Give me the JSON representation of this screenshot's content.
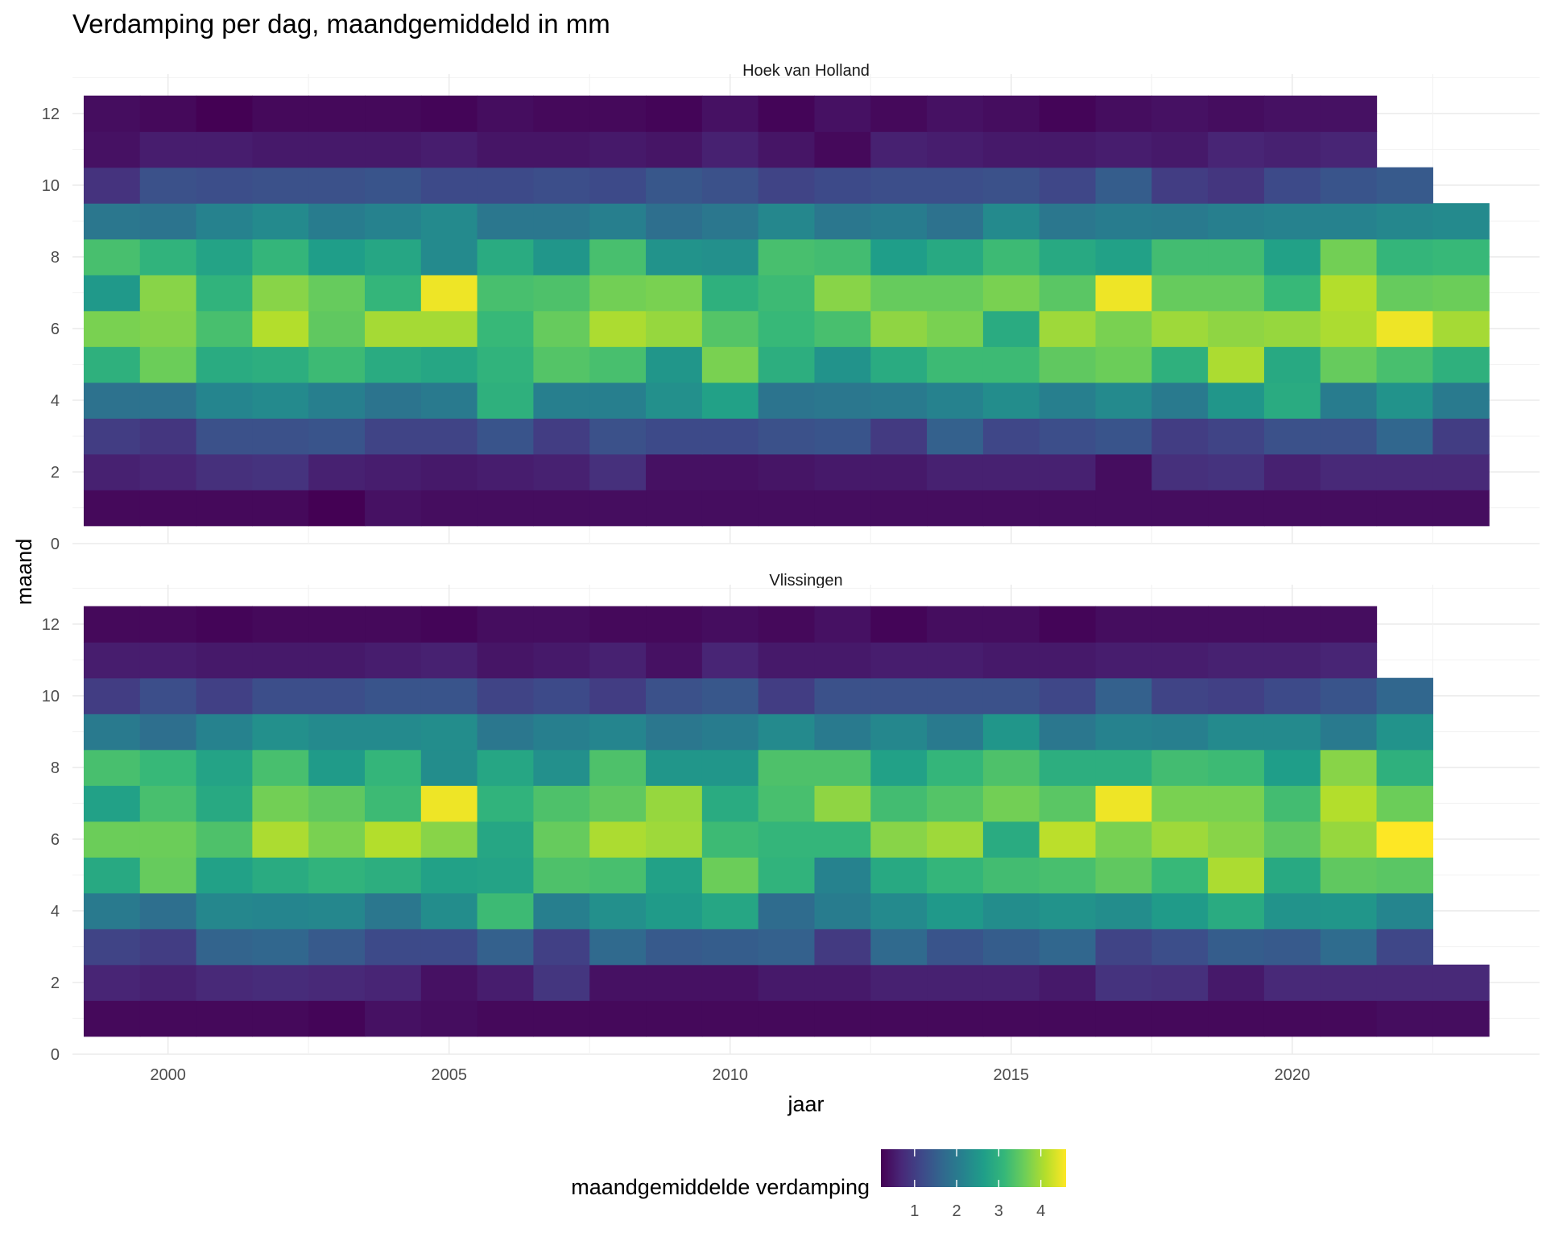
{
  "chart_data": {
    "type": "heatmap",
    "title": "Verdamping per dag, maandgemiddeld in mm",
    "xlabel": "jaar",
    "ylabel": "maand",
    "x_ticks": [
      2000,
      2005,
      2010,
      2015,
      2020
    ],
    "y_ticks": [
      0,
      2,
      4,
      6,
      8,
      10,
      12
    ],
    "xlim": [
      1998.3,
      2024.4
    ],
    "ylim": [
      0,
      13.1
    ],
    "years": [
      1999,
      2000,
      2001,
      2002,
      2003,
      2004,
      2005,
      2006,
      2007,
      2008,
      2009,
      2010,
      2011,
      2012,
      2013,
      2014,
      2015,
      2016,
      2017,
      2018,
      2019,
      2020,
      2021,
      2022,
      2023
    ],
    "months": [
      1,
      2,
      3,
      4,
      5,
      6,
      7,
      8,
      9,
      10,
      11,
      12
    ],
    "color_scale": {
      "name": "viridis",
      "legend_title": "maandgemiddelde verdamping",
      "legend_ticks": [
        1,
        2,
        3,
        4
      ],
      "min": 0.2,
      "max": 4.6,
      "legend_position": "bottom",
      "stops": [
        "#440154",
        "#482878",
        "#3e4989",
        "#31688e",
        "#26828e",
        "#1f9e89",
        "#35b779",
        "#6ece58",
        "#b5de2b",
        "#fde725"
      ]
    },
    "panels": [
      {
        "name": "Hoek van Holland",
        "values": [
          [
            0.3,
            0.3,
            0.3,
            0.3,
            0.2,
            0.4,
            0.35,
            0.35,
            0.35,
            0.35,
            0.35,
            0.35,
            0.35,
            0.35,
            0.35,
            0.35,
            0.35,
            0.35,
            0.35,
            0.35,
            0.35,
            0.35,
            0.35,
            0.35,
            0.35
          ],
          [
            0.6,
            0.65,
            0.8,
            0.85,
            0.6,
            0.55,
            0.5,
            0.55,
            0.6,
            0.8,
            0.4,
            0.4,
            0.45,
            0.5,
            0.5,
            0.6,
            0.6,
            0.6,
            0.35,
            0.8,
            0.85,
            0.6,
            0.7,
            0.7,
            0.7
          ],
          [
            1.0,
            0.9,
            1.3,
            1.3,
            1.35,
            1.1,
            1.1,
            1.35,
            1.0,
            1.3,
            1.2,
            1.2,
            1.3,
            1.35,
            0.95,
            1.55,
            1.15,
            1.25,
            1.35,
            1.0,
            1.1,
            1.3,
            1.3,
            1.65,
            1.0
          ],
          [
            1.85,
            1.85,
            2.2,
            2.3,
            2.1,
            1.9,
            2.0,
            3.0,
            2.1,
            2.1,
            2.4,
            2.7,
            1.9,
            1.95,
            2.0,
            2.15,
            2.35,
            2.1,
            2.3,
            2.0,
            2.5,
            2.9,
            2.05,
            2.45,
            2.0
          ],
          [
            3.0,
            3.6,
            2.9,
            2.95,
            3.2,
            2.9,
            2.8,
            3.05,
            3.4,
            3.3,
            2.5,
            3.7,
            2.95,
            2.45,
            2.9,
            3.2,
            3.2,
            3.5,
            3.6,
            3.0,
            4.05,
            2.85,
            3.55,
            3.3,
            3.0
          ],
          [
            3.7,
            3.75,
            3.3,
            4.1,
            3.5,
            4.0,
            4.0,
            3.15,
            3.55,
            4.05,
            3.9,
            3.4,
            3.15,
            3.3,
            3.85,
            3.7,
            2.9,
            3.95,
            3.7,
            3.95,
            3.85,
            3.9,
            4.05,
            4.5,
            4.0
          ],
          [
            2.55,
            3.8,
            3.05,
            3.8,
            3.55,
            3.1,
            4.5,
            3.3,
            3.35,
            3.65,
            3.7,
            3.0,
            3.2,
            3.8,
            3.55,
            3.55,
            3.7,
            3.45,
            4.5,
            3.55,
            3.55,
            3.15,
            4.1,
            3.55,
            3.6
          ],
          [
            3.3,
            3.05,
            2.75,
            3.1,
            2.65,
            2.8,
            2.3,
            2.9,
            2.5,
            3.3,
            2.45,
            2.4,
            3.3,
            3.25,
            2.65,
            2.85,
            3.2,
            2.85,
            2.7,
            3.25,
            3.25,
            2.7,
            3.65,
            3.1,
            3.15
          ],
          [
            1.95,
            1.9,
            2.15,
            2.3,
            2.05,
            2.15,
            2.3,
            1.95,
            1.95,
            2.1,
            1.8,
            1.95,
            2.25,
            1.95,
            2.05,
            1.85,
            2.3,
            1.95,
            2.05,
            2.0,
            2.1,
            2.15,
            2.15,
            2.25,
            2.3
          ],
          [
            0.85,
            1.3,
            1.25,
            1.3,
            1.3,
            1.35,
            1.2,
            1.2,
            1.25,
            1.2,
            1.4,
            1.3,
            1.1,
            1.2,
            1.25,
            1.25,
            1.3,
            1.15,
            1.5,
            1.0,
            0.9,
            1.2,
            1.35,
            1.45,
            null
          ],
          [
            0.4,
            0.55,
            0.55,
            0.5,
            0.5,
            0.5,
            0.55,
            0.45,
            0.45,
            0.5,
            0.45,
            0.6,
            0.45,
            0.3,
            0.6,
            0.55,
            0.5,
            0.5,
            0.55,
            0.5,
            0.65,
            0.6,
            0.65,
            null,
            null
          ],
          [
            0.35,
            0.3,
            0.2,
            0.3,
            0.3,
            0.3,
            0.25,
            0.35,
            0.3,
            0.3,
            0.25,
            0.4,
            0.25,
            0.4,
            0.3,
            0.4,
            0.35,
            0.25,
            0.35,
            0.4,
            0.35,
            0.4,
            0.4,
            null,
            null
          ]
        ]
      },
      {
        "name": "Vlissingen",
        "values": [
          [
            0.3,
            0.3,
            0.3,
            0.3,
            0.25,
            0.4,
            0.35,
            0.3,
            0.3,
            0.3,
            0.3,
            0.3,
            0.3,
            0.3,
            0.3,
            0.3,
            0.3,
            0.3,
            0.3,
            0.3,
            0.3,
            0.3,
            0.3,
            0.35,
            0.35
          ],
          [
            0.65,
            0.6,
            0.7,
            0.75,
            0.7,
            0.65,
            0.4,
            0.55,
            0.9,
            0.4,
            0.4,
            0.4,
            0.5,
            0.5,
            0.6,
            0.6,
            0.6,
            0.5,
            0.85,
            0.8,
            0.5,
            0.7,
            0.7,
            0.7,
            0.7
          ],
          [
            1.1,
            1.0,
            1.6,
            1.65,
            1.45,
            1.2,
            1.2,
            1.55,
            1.05,
            1.7,
            1.45,
            1.5,
            1.55,
            0.95,
            1.7,
            1.35,
            1.5,
            1.65,
            1.1,
            1.25,
            1.5,
            1.45,
            1.75,
            1.15,
            null
          ],
          [
            2.0,
            1.8,
            2.25,
            2.2,
            2.25,
            1.95,
            2.35,
            3.2,
            2.1,
            2.4,
            2.6,
            2.8,
            1.75,
            2.05,
            2.3,
            2.55,
            2.35,
            2.45,
            2.35,
            2.6,
            2.9,
            2.45,
            2.5,
            2.2,
            null
          ],
          [
            2.85,
            3.55,
            2.7,
            2.9,
            3.05,
            2.95,
            2.7,
            2.75,
            3.35,
            3.3,
            2.7,
            3.6,
            3.05,
            2.15,
            2.85,
            3.1,
            3.25,
            3.3,
            3.5,
            3.15,
            4.05,
            2.85,
            3.5,
            3.45,
            null
          ],
          [
            3.6,
            3.6,
            3.35,
            4.05,
            3.7,
            4.1,
            3.8,
            2.8,
            3.55,
            4.05,
            3.95,
            3.2,
            3.1,
            3.1,
            3.8,
            3.95,
            2.9,
            4.15,
            3.7,
            3.95,
            3.8,
            3.5,
            3.9,
            4.6,
            null
          ],
          [
            2.7,
            3.3,
            2.85,
            3.65,
            3.5,
            3.2,
            4.5,
            3.05,
            3.35,
            3.5,
            3.9,
            2.9,
            3.3,
            3.85,
            3.25,
            3.4,
            3.65,
            3.45,
            4.5,
            3.7,
            3.7,
            3.25,
            4.1,
            3.6,
            null
          ],
          [
            3.3,
            3.15,
            2.75,
            3.3,
            2.6,
            3.1,
            2.35,
            2.8,
            2.4,
            3.35,
            2.5,
            2.5,
            3.35,
            3.35,
            2.7,
            3.1,
            3.35,
            2.95,
            2.95,
            3.25,
            3.2,
            2.65,
            3.8,
            3.0,
            null
          ],
          [
            2.0,
            1.8,
            2.15,
            2.4,
            2.3,
            2.3,
            2.35,
            1.95,
            2.1,
            2.2,
            1.95,
            2.05,
            2.3,
            2.0,
            2.25,
            2.0,
            2.5,
            1.95,
            2.15,
            2.1,
            2.3,
            2.3,
            2.0,
            2.45,
            null
          ],
          [
            1.0,
            1.25,
            1.05,
            1.25,
            1.25,
            1.35,
            1.35,
            1.1,
            1.2,
            1.0,
            1.3,
            1.4,
            1.0,
            1.3,
            1.3,
            1.3,
            1.3,
            1.15,
            1.55,
            1.1,
            1.05,
            1.2,
            1.35,
            1.65,
            null
          ],
          [
            0.55,
            0.55,
            0.5,
            0.5,
            0.5,
            0.55,
            0.6,
            0.45,
            0.5,
            0.6,
            0.4,
            0.65,
            0.5,
            0.5,
            0.55,
            0.55,
            0.5,
            0.5,
            0.55,
            0.55,
            0.6,
            0.6,
            0.65,
            null,
            null
          ],
          [
            0.3,
            0.3,
            0.25,
            0.3,
            0.3,
            0.3,
            0.25,
            0.35,
            0.35,
            0.3,
            0.3,
            0.35,
            0.3,
            0.4,
            0.25,
            0.35,
            0.35,
            0.25,
            0.35,
            0.35,
            0.35,
            0.35,
            0.35,
            null,
            null
          ]
        ]
      }
    ]
  }
}
